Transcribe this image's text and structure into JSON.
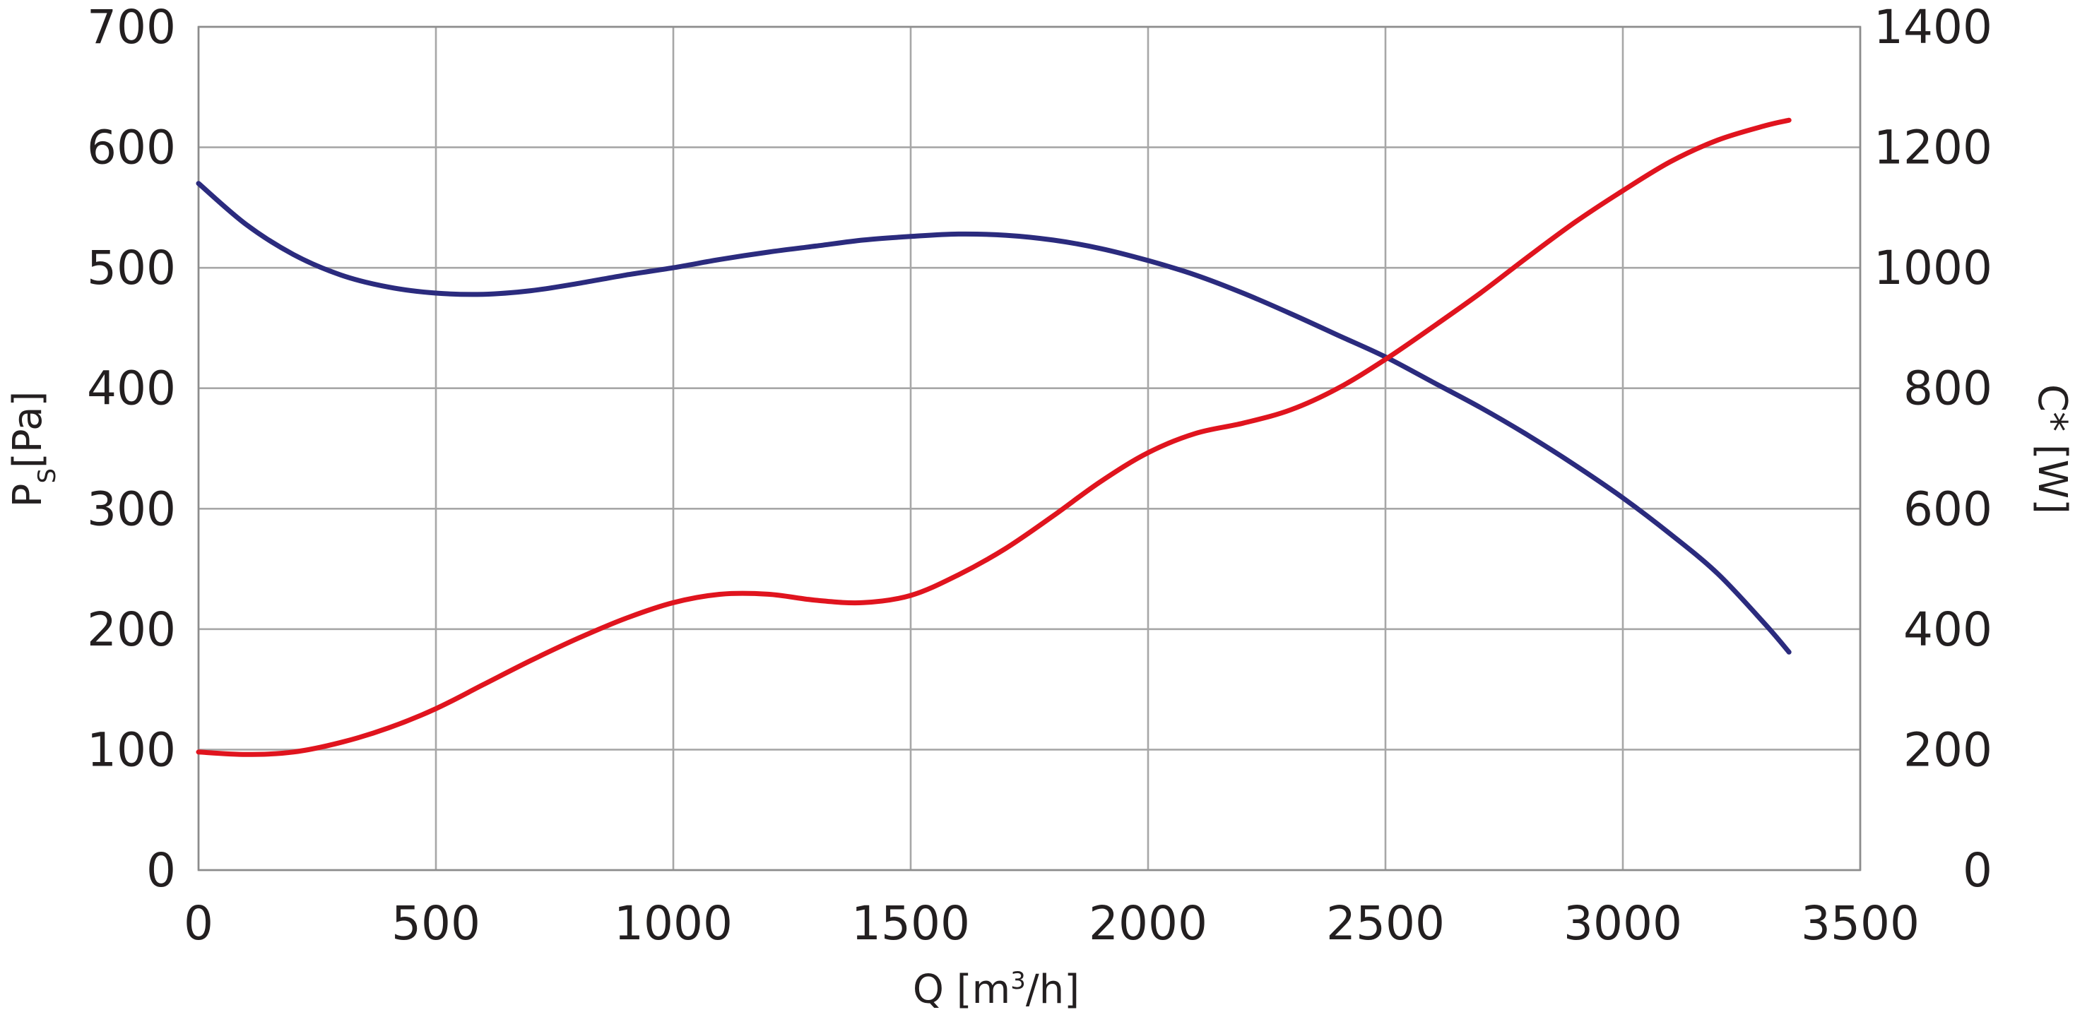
{
  "chart_data": {
    "type": "line",
    "x_axis": {
      "label": "Q [m³/h]",
      "label_main": "Q [m",
      "label_sup": "3",
      "label_rest": "/h]",
      "min": 0,
      "max": 3500,
      "ticks": [
        "0",
        "500",
        "1000",
        "1500",
        "2000",
        "2500",
        "3000",
        "3500"
      ]
    },
    "y_axis_left": {
      "label": "Ps[Pa]",
      "label_main": "P",
      "label_sub": "S",
      "label_rest": "[Pa]",
      "min": 0,
      "max": 700,
      "ticks": [
        "0",
        "100",
        "200",
        "300",
        "400",
        "500",
        "600",
        "700"
      ]
    },
    "y_axis_right": {
      "label": "C* [W]",
      "min": 0,
      "max": 1400,
      "ticks": [
        "0",
        "200",
        "400",
        "600",
        "800",
        "1000",
        "1200",
        "1400"
      ]
    },
    "grid": true,
    "series": [
      {
        "axis": "left",
        "color": "#2b2b7e",
        "x": [
          0,
          100,
          200,
          300,
          400,
          500,
          600,
          700,
          800,
          900,
          1000,
          1100,
          1200,
          1300,
          1400,
          1500,
          1600,
          1700,
          1800,
          1900,
          2000,
          2100,
          2200,
          2300,
          2400,
          2500,
          2600,
          2700,
          2800,
          2900,
          3000,
          3100,
          3200,
          3300,
          3350
        ],
        "y": [
          570,
          536,
          511,
          494,
          484,
          479,
          478,
          481,
          487,
          494,
          500,
          507,
          513,
          518,
          523,
          526,
          528,
          527,
          523,
          516,
          506,
          494,
          479,
          462,
          444,
          426,
          405,
          384,
          361,
          336,
          309,
          279,
          246,
          204,
          181
        ]
      },
      {
        "axis": "right",
        "color": "#e0141e",
        "x": [
          0,
          100,
          200,
          300,
          400,
          500,
          600,
          700,
          800,
          900,
          1000,
          1100,
          1200,
          1300,
          1400,
          1500,
          1600,
          1700,
          1800,
          1900,
          2000,
          2100,
          2200,
          2300,
          2400,
          2500,
          2600,
          2700,
          2800,
          2900,
          3000,
          3100,
          3200,
          3300,
          3350
        ],
        "y": [
          196,
          192,
          196,
          212,
          236,
          268,
          308,
          348,
          385,
          418,
          444,
          458,
          458,
          448,
          444,
          456,
          490,
          534,
          588,
          645,
          693,
          725,
          742,
          764,
          800,
          848,
          902,
          958,
          1018,
          1076,
          1128,
          1176,
          1212,
          1236,
          1245
        ]
      }
    ]
  }
}
